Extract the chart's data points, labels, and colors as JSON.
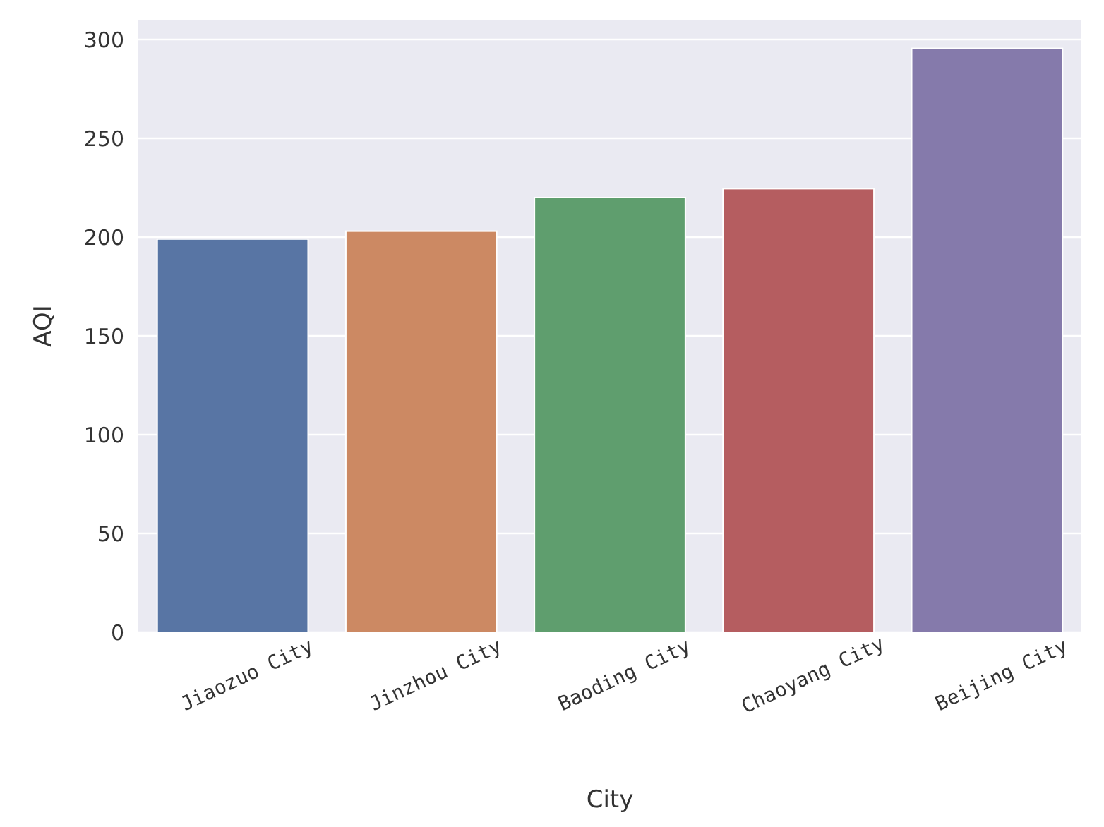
{
  "chart_data": {
    "type": "bar",
    "xlabel": "City",
    "ylabel": "AQI",
    "categories": [
      "Jiaozuo City",
      "Jinzhou City",
      "Baoding City",
      "Chaoyang City",
      "Beijing City"
    ],
    "values": [
      199,
      203,
      220,
      224.5,
      295.5
    ],
    "colors": [
      "#5875a4",
      "#cc8963",
      "#5f9e6e",
      "#b55d60",
      "#857aab"
    ],
    "ylim": [
      0,
      310
    ],
    "yticks": [
      0,
      50,
      100,
      150,
      200,
      250,
      300
    ],
    "grid": "y"
  }
}
